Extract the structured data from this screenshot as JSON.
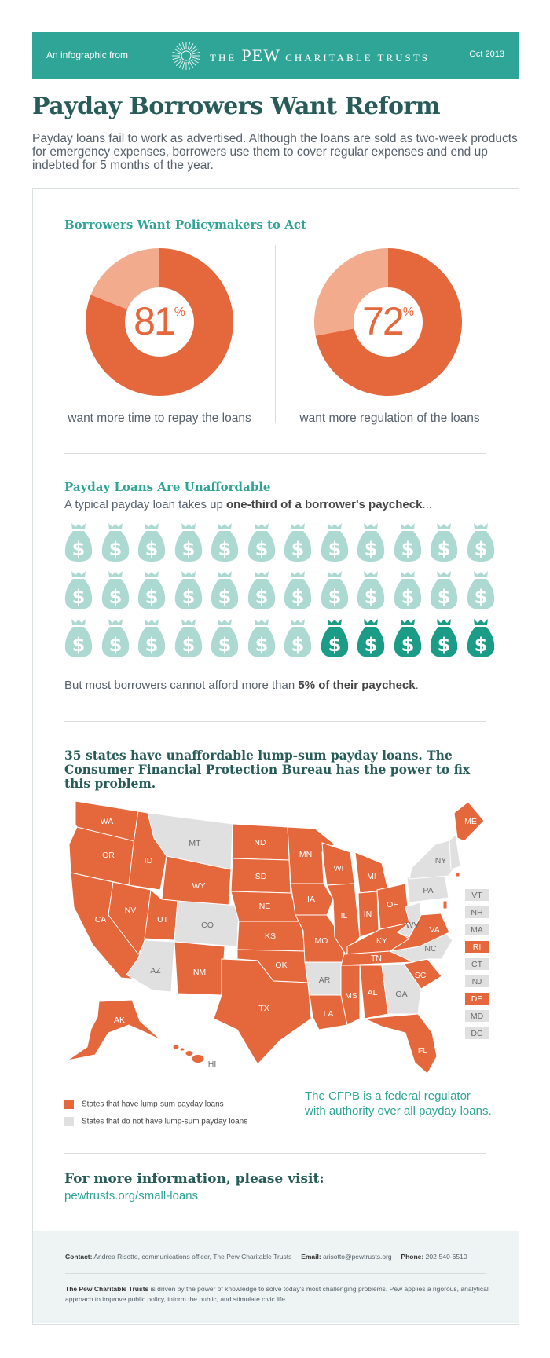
{
  "header": {
    "intro": "An infographic from",
    "brand_the": "THE",
    "brand_pew": "PEW",
    "brand_rest": "CHARITABLE TRUSTS",
    "separator": "|",
    "date": "Oct 2013"
  },
  "title": "Payday Borrowers Want Reform",
  "intro": "Payday loans fail to work as advertised. Although the loans are sold as two-week products for emergency expenses, borrowers use them to cover regular expenses and end up indebted for 5 months of the year.",
  "section1": {
    "title": "Borrowers Want Policymakers to Act",
    "donut1": {
      "value": "81",
      "sign": "%",
      "caption": "want more time to repay the loans"
    },
    "donut2": {
      "value": "72",
      "sign": "%",
      "caption": "want more regulation of the loans"
    }
  },
  "section2": {
    "title": "Payday Loans Are Unaffordable",
    "line1_pre": "A typical payday loan takes up ",
    "line1_bold": "one-third of a borrower's paycheck",
    "line1_post": "...",
    "line2_pre": "But most borrowers cannot afford more than ",
    "line2_bold": "5% of their paycheck",
    "line2_post": "."
  },
  "section3": {
    "title": "35 states have unaffordable lump-sum payday loans. The Consumer Financial Protection Bureau has the power to fix this problem.",
    "legend_lump": "States that have lump-sum payday loans",
    "legend_none": "States that do not have lump-sum payday loans",
    "note": "The CFPB is a federal regulator with authority over all payday loans."
  },
  "more_info": {
    "title": "For more information, please visit:",
    "link": "pewtrusts.org/small-loans"
  },
  "footer": {
    "contact_label": "Contact:",
    "contact_value": "Andrea Risotto, communications officer, The Pew Charitable Trusts",
    "email_label": "Email:",
    "email_value": "arisotto@pewtrusts.org",
    "phone_label": "Phone:",
    "phone_value": "202-540-6510",
    "about_bold": "The Pew Charitable Trusts",
    "about_text": " is driven by the power of knowledge to solve today's most challenging problems. Pew applies a rigorous, analytical approach to improve public policy, inform the public, and stimulate civic life."
  },
  "colors": {
    "teal": "#2fa597",
    "dark_teal": "#275c59",
    "orange": "#e5673c",
    "peach": "#f2ab8c",
    "gray_state": "#e0e0e0",
    "light_bag": "#acd9d2",
    "dark_bag": "#1a9c86"
  },
  "chart_data": [
    {
      "type": "pie",
      "title": "Borrowers Want Policymakers to Act",
      "categories": [
        "want more time to repay the loans",
        ""
      ],
      "values": [
        81,
        19
      ]
    },
    {
      "type": "pie",
      "title": "Borrowers Want Policymakers to Act",
      "categories": [
        "want more regulation of the loans",
        ""
      ],
      "values": [
        72,
        28
      ]
    },
    {
      "type": "table",
      "title": "35 states have unaffordable lump-sum payday loans. The Consumer Financial Protection Bureau has the power to fix this problem.",
      "legend": [
        "States that have lump-sum payday loans",
        "States that do not have lump-sum payday loans"
      ],
      "states_with_lump_sum": [
        "WA",
        "OR",
        "CA",
        "NV",
        "ID",
        "UT",
        "WY",
        "NM",
        "ND",
        "SD",
        "NE",
        "KS",
        "OK",
        "TX",
        "MN",
        "IA",
        "MO",
        "LA",
        "WI",
        "IL",
        "MI",
        "IN",
        "OH",
        "KY",
        "TN",
        "MS",
        "AL",
        "SC",
        "FL",
        "VA",
        "ME",
        "AK",
        "HI",
        "RI",
        "DE"
      ],
      "states_without_lump_sum": [
        "MT",
        "CO",
        "AZ",
        "AR",
        "GA",
        "NC",
        "WV",
        "PA",
        "NY",
        "VT",
        "NH",
        "MA",
        "CT",
        "NJ",
        "MD",
        "DC"
      ]
    }
  ]
}
